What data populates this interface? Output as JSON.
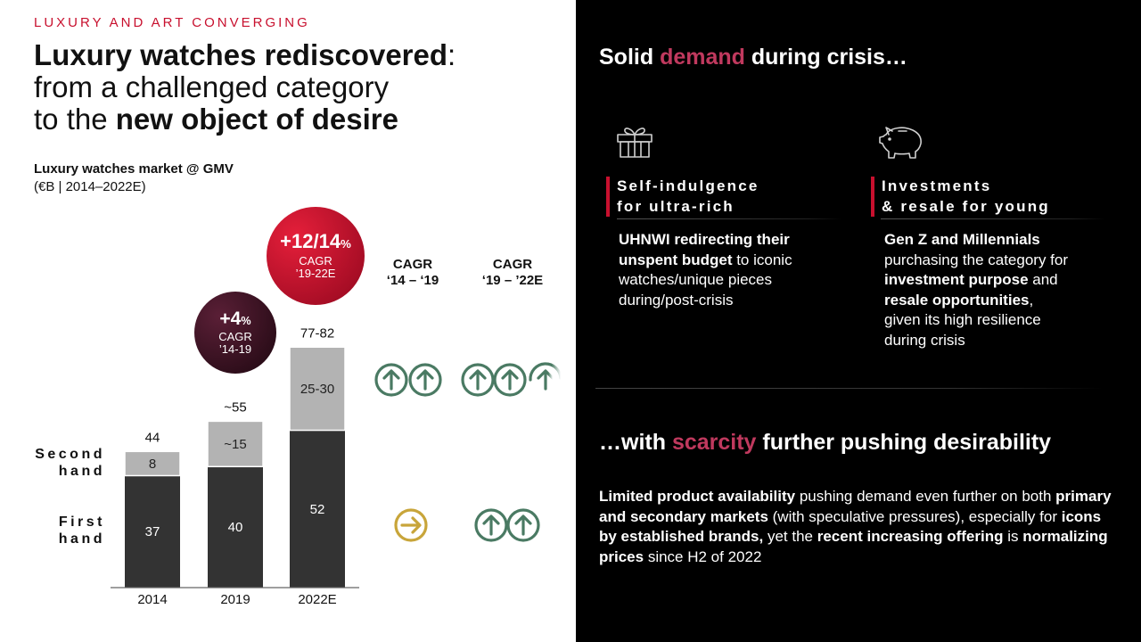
{
  "left": {
    "kicker": "LUXURY AND ART CONVERGING",
    "headline": {
      "line1_bold": "Luxury watches rediscovered",
      "line1_rest": ":",
      "line2": "from a challenged category",
      "line3_pre": "to the ",
      "line3_bold": "new object of desire"
    },
    "subtitle": "Luxury watches market @ GMV",
    "subunit": "(€B | 2014–2022E)",
    "row_labels": {
      "second_line1": "Second",
      "second_line2": "hand",
      "first_line1": "First",
      "first_line2": "hand"
    },
    "bubble1": {
      "value": "+4",
      "pct": "%",
      "label1": "CAGR",
      "label2": "’14-19"
    },
    "bubble2": {
      "value": "+12/14",
      "pct": "%",
      "label1": "CAGR",
      "label2": "’19-22E"
    },
    "cagr_heads": [
      {
        "line1": "CAGR",
        "line2": "‘14 – ‘19"
      },
      {
        "line1": "CAGR",
        "line2": "‘19 – ’22E"
      }
    ]
  },
  "chart_data": {
    "type": "bar",
    "stacked": true,
    "title": "Luxury watches market @ GMV",
    "ylabel": "€B",
    "categories": [
      "2014",
      "2019",
      "2022E"
    ],
    "series": [
      {
        "name": "First hand",
        "values": [
          37,
          40,
          52
        ],
        "labels": [
          "37",
          "40",
          "52"
        ],
        "color": "#333333"
      },
      {
        "name": "Second hand",
        "values": [
          8,
          15,
          27.5
        ],
        "labels": [
          "8",
          "~15",
          "25-30"
        ],
        "color": "#b3b3b3"
      }
    ],
    "totals": [
      "44",
      "~55",
      "77-82"
    ],
    "ylim": [
      0,
      84
    ]
  },
  "arrows": {
    "second_hand_14_19": {
      "icon": "arrow-up-circle-icon",
      "count": 2,
      "color": "#4a7a63"
    },
    "second_hand_19_22": {
      "icon": "arrow-up-circle-icon",
      "count": 3,
      "color": "#4a7a63"
    },
    "first_hand_14_19": {
      "icon": "arrow-right-circle-icon",
      "count": 1,
      "color": "#c8a53a"
    },
    "first_hand_19_22": {
      "icon": "arrow-up-circle-icon",
      "count": 2,
      "color": "#4a7a63"
    }
  },
  "right": {
    "title_pre": "Solid ",
    "title_accent": "demand",
    "title_post": " during crisis…",
    "col1": {
      "icon": "gift-icon",
      "head_line1": "Self-indulgence",
      "head_line2": "for ultra-rich",
      "b1": "UHNWI redirecting their",
      "b2": "unspent budget",
      "t1": " to iconic",
      "t2": "watches/unique pieces",
      "t3": "during/post-crisis"
    },
    "col2": {
      "icon": "piggy-bank-icon",
      "head_line1": "Investments",
      "head_line2": "& resale for young",
      "b1": "Gen Z and Millennials",
      "t1": "purchasing the category for",
      "b2": "investment purpose",
      "t2": " and",
      "b3": "resale opportunities",
      "t3": ",",
      "t4": "given its high resilience",
      "t5": "during crisis"
    },
    "title2_pre": "…with ",
    "title2_accent": "scarcity",
    "title2_post": " further pushing desirability",
    "bottom": {
      "b1": "Limited product availability",
      "t1": " pushing demand even further on both ",
      "b2": "primary and secondary markets",
      "t2": " (with speculative pressures), especially for ",
      "b3": "icons by established brands,",
      "t3": " yet the ",
      "b4": "recent increasing offering",
      "t4": " is ",
      "b5": "normalizing prices",
      "t5": " since H2 of 2022"
    },
    "accent_color": "#c0395e"
  }
}
